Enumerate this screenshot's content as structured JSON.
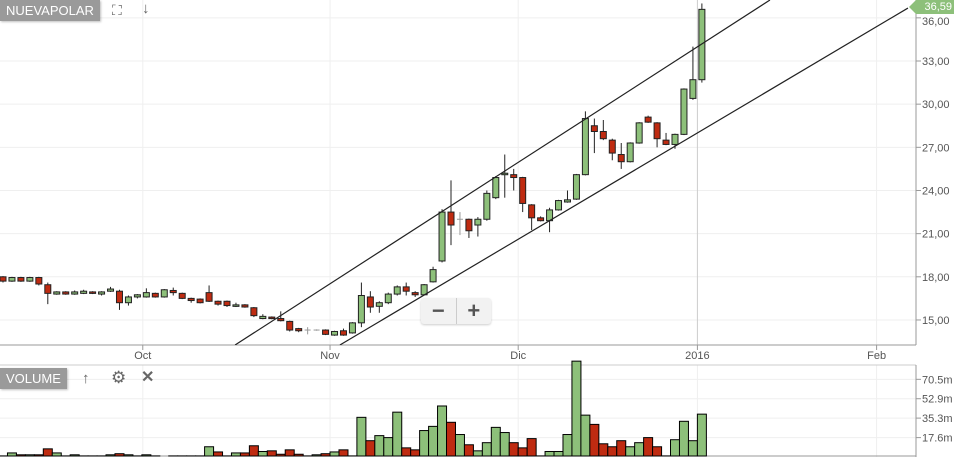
{
  "header": {
    "symbol": "NUEVAPOLAR",
    "icons": [
      "fullscreen-icon",
      "arrow-down-icon"
    ]
  },
  "volume_pane": {
    "label": "VOLUME",
    "icons": [
      "arrow-up-icon",
      "gear-icon",
      "close-icon"
    ]
  },
  "zoom": {
    "out_label": "−",
    "in_label": "+"
  },
  "last_price_label": "36,59",
  "colors": {
    "up": "#8dc07a",
    "down": "#bf2b11",
    "trendline": "#222222",
    "grid": "#efefef",
    "axis": "#999999"
  },
  "chart_data": {
    "type": "candlestick",
    "price_axis": {
      "ylim": [
        13.26,
        37.24
      ],
      "ticks": [
        "15,00",
        "18,00",
        "21,00",
        "24,00",
        "27,00",
        "30,00",
        "33,00",
        "36,00"
      ],
      "tick_values": [
        15,
        18,
        21,
        24,
        27,
        30,
        33,
        36
      ]
    },
    "x_ticks": [
      {
        "label": "Oct",
        "index": 15.6
      },
      {
        "label": "Nov",
        "index": 36.5
      },
      {
        "label": "Dic",
        "index": 57.5
      },
      {
        "label": "2016",
        "index": 77.5
      },
      {
        "label": "Feb",
        "index": 97.5
      }
    ],
    "candles": [
      [
        18.0,
        18.05,
        17.6,
        17.7
      ],
      [
        17.7,
        18.0,
        17.65,
        17.95
      ],
      [
        17.95,
        18.0,
        17.65,
        17.7
      ],
      [
        17.7,
        18.0,
        17.65,
        17.95
      ],
      [
        17.95,
        18.0,
        17.4,
        17.5
      ],
      [
        17.45,
        17.6,
        16.1,
        16.85
      ],
      [
        16.8,
        17.0,
        16.75,
        16.95
      ],
      [
        16.95,
        17.0,
        16.75,
        16.8
      ],
      [
        16.8,
        17.05,
        16.75,
        16.95
      ],
      [
        16.85,
        17.1,
        16.8,
        17.0
      ],
      [
        16.95,
        17.0,
        16.8,
        16.85
      ],
      [
        16.8,
        17.0,
        16.7,
        16.95
      ],
      [
        17.0,
        17.3,
        16.95,
        17.15
      ],
      [
        17.0,
        17.1,
        15.7,
        16.2
      ],
      [
        16.2,
        16.7,
        16.0,
        16.6
      ],
      [
        16.6,
        16.8,
        16.5,
        16.75
      ],
      [
        16.6,
        17.2,
        16.55,
        16.9
      ],
      [
        16.85,
        16.9,
        16.55,
        16.6
      ],
      [
        16.6,
        17.15,
        16.55,
        17.1
      ],
      [
        17.05,
        17.25,
        16.7,
        16.9
      ],
      [
        16.85,
        16.9,
        16.45,
        16.5
      ],
      [
        16.5,
        16.55,
        16.2,
        16.35
      ],
      [
        16.45,
        16.5,
        16.15,
        16.2
      ],
      [
        16.9,
        17.4,
        16.25,
        16.3
      ],
      [
        16.3,
        16.35,
        16.0,
        16.1
      ],
      [
        16.3,
        16.35,
        15.9,
        16.0
      ],
      [
        15.95,
        16.2,
        15.9,
        16.05
      ],
      [
        16.05,
        16.1,
        15.85,
        15.9
      ],
      [
        15.85,
        15.9,
        15.2,
        15.3
      ],
      [
        15.1,
        15.4,
        15.05,
        15.25
      ],
      [
        15.2,
        15.25,
        15.05,
        15.1
      ],
      [
        15.1,
        15.6,
        14.9,
        14.95
      ],
      [
        14.9,
        14.95,
        14.2,
        14.3
      ],
      [
        14.4,
        14.45,
        14.15,
        14.25
      ],
      [
        14.3,
        14.5,
        14.0,
        14.3
      ],
      [
        14.3,
        14.35,
        14.25,
        14.3
      ],
      [
        14.3,
        14.35,
        13.95,
        14.0
      ],
      [
        13.95,
        14.25,
        13.9,
        14.2
      ],
      [
        14.25,
        14.4,
        13.9,
        13.95
      ],
      [
        14.1,
        14.85,
        14.05,
        14.8
      ],
      [
        14.8,
        17.6,
        14.5,
        16.7
      ],
      [
        16.6,
        17.0,
        15.5,
        15.9
      ],
      [
        15.95,
        16.3,
        15.5,
        16.2
      ],
      [
        16.2,
        16.9,
        16.1,
        16.8
      ],
      [
        16.8,
        17.4,
        16.7,
        17.3
      ],
      [
        17.3,
        17.6,
        16.7,
        17.0
      ],
      [
        16.9,
        17.0,
        16.6,
        16.75
      ],
      [
        16.75,
        17.5,
        16.7,
        17.45
      ],
      [
        17.65,
        18.7,
        17.6,
        18.5
      ],
      [
        19.1,
        22.7,
        19.0,
        22.5
      ],
      [
        22.5,
        24.7,
        20.2,
        21.6
      ],
      [
        22.0,
        22.5,
        20.9,
        22.0
      ],
      [
        22.0,
        22.05,
        20.7,
        21.2
      ],
      [
        21.6,
        22.15,
        20.8,
        22.0
      ],
      [
        22.0,
        24.0,
        21.9,
        23.8
      ],
      [
        23.5,
        25.0,
        23.4,
        24.9
      ],
      [
        25.1,
        26.5,
        23.5,
        25.2
      ],
      [
        25.1,
        25.5,
        24.0,
        24.9
      ],
      [
        24.9,
        24.95,
        22.5,
        23.1
      ],
      [
        23.0,
        23.05,
        21.25,
        22.1
      ],
      [
        22.1,
        22.2,
        21.85,
        21.9
      ],
      [
        21.9,
        22.8,
        21.1,
        22.65
      ],
      [
        22.65,
        23.35,
        22.6,
        23.3
      ],
      [
        23.2,
        24.0,
        23.15,
        23.35
      ],
      [
        23.4,
        25.15,
        23.35,
        25.1
      ],
      [
        25.1,
        29.5,
        25.05,
        29.0
      ],
      [
        28.5,
        29.0,
        26.6,
        28.1
      ],
      [
        28.1,
        28.9,
        27.5,
        27.6
      ],
      [
        27.5,
        27.6,
        26.1,
        26.6
      ],
      [
        26.5,
        27.3,
        25.5,
        26.0
      ],
      [
        26.0,
        27.35,
        25.95,
        27.3
      ],
      [
        27.3,
        28.75,
        27.25,
        28.7
      ],
      [
        29.1,
        29.2,
        28.7,
        28.75
      ],
      [
        28.7,
        28.75,
        27.0,
        27.6
      ],
      [
        27.5,
        28.0,
        27.15,
        27.2
      ],
      [
        27.2,
        27.95,
        26.9,
        27.9
      ],
      [
        27.9,
        31.1,
        27.85,
        31.05
      ],
      [
        30.4,
        34.0,
        30.3,
        31.7
      ],
      [
        31.7,
        37.0,
        31.5,
        36.59
      ]
    ],
    "volume_axis": {
      "ylim": [
        0,
        83.5
      ],
      "ticks": [
        "17.6m",
        "35.3m",
        "52.9m",
        "70.5m"
      ],
      "tick_values": [
        17.6,
        35.3,
        52.9,
        70.5
      ]
    },
    "volume": [
      [
        1,
        "down"
      ],
      [
        3.7,
        "up"
      ],
      [
        2,
        "down"
      ],
      [
        2,
        "up"
      ],
      [
        2,
        "down"
      ],
      [
        7.4,
        "down"
      ],
      [
        3.7,
        "up"
      ],
      [
        1,
        "up"
      ],
      [
        2,
        "up"
      ],
      [
        1,
        "up"
      ],
      [
        1,
        "down"
      ],
      [
        1,
        "up"
      ],
      [
        2,
        "up"
      ],
      [
        3,
        "down"
      ],
      [
        2,
        "up"
      ],
      [
        1,
        "up"
      ],
      [
        2,
        "up"
      ],
      [
        1,
        "down"
      ],
      [
        0,
        "up"
      ],
      [
        1,
        "up"
      ],
      [
        1,
        "down"
      ],
      [
        1,
        "down"
      ],
      [
        1,
        "down"
      ],
      [
        9.3,
        "up"
      ],
      [
        4.6,
        "down"
      ],
      [
        1,
        "down"
      ],
      [
        3.7,
        "up"
      ],
      [
        3.7,
        "down"
      ],
      [
        10.2,
        "down"
      ],
      [
        5,
        "up"
      ],
      [
        5.6,
        "down"
      ],
      [
        2.5,
        "down"
      ],
      [
        6.5,
        "down"
      ],
      [
        2.5,
        "down"
      ],
      [
        1,
        "down"
      ],
      [
        2,
        "up"
      ],
      [
        3,
        "down"
      ],
      [
        4.6,
        "up"
      ],
      [
        6.5,
        "down"
      ],
      [
        1,
        "up"
      ],
      [
        36,
        "up"
      ],
      [
        14.8,
        "down"
      ],
      [
        19.4,
        "up"
      ],
      [
        17.6,
        "up"
      ],
      [
        40.7,
        "up"
      ],
      [
        8.3,
        "down"
      ],
      [
        6.5,
        "down"
      ],
      [
        24,
        "up"
      ],
      [
        27.8,
        "up"
      ],
      [
        46.3,
        "up"
      ],
      [
        31.5,
        "down"
      ],
      [
        20.4,
        "up"
      ],
      [
        11.1,
        "down"
      ],
      [
        5.6,
        "up"
      ],
      [
        13,
        "up"
      ],
      [
        26.9,
        "up"
      ],
      [
        22.2,
        "up"
      ],
      [
        13,
        "down"
      ],
      [
        8.3,
        "down"
      ],
      [
        16.7,
        "down"
      ],
      [
        1,
        "down"
      ],
      [
        5,
        "up"
      ],
      [
        5,
        "up"
      ],
      [
        20.4,
        "up"
      ],
      [
        87,
        "up"
      ],
      [
        38,
        "up"
      ],
      [
        29.6,
        "down"
      ],
      [
        12,
        "down"
      ],
      [
        9.3,
        "down"
      ],
      [
        14.8,
        "down"
      ],
      [
        9.3,
        "up"
      ],
      [
        13,
        "up"
      ],
      [
        17.6,
        "down"
      ],
      [
        9.3,
        "down"
      ],
      [
        1,
        "down"
      ],
      [
        15.7,
        "up"
      ],
      [
        32.4,
        "up"
      ],
      [
        14.8,
        "up"
      ],
      [
        38.9,
        "up"
      ]
    ],
    "trendlines": [
      {
        "from": [
          25.9,
          13.26
        ],
        "to": [
          85.6,
          37.24
        ]
      },
      {
        "from": [
          37.6,
          13.26
        ],
        "to": [
          101,
          36.68
        ]
      }
    ]
  }
}
